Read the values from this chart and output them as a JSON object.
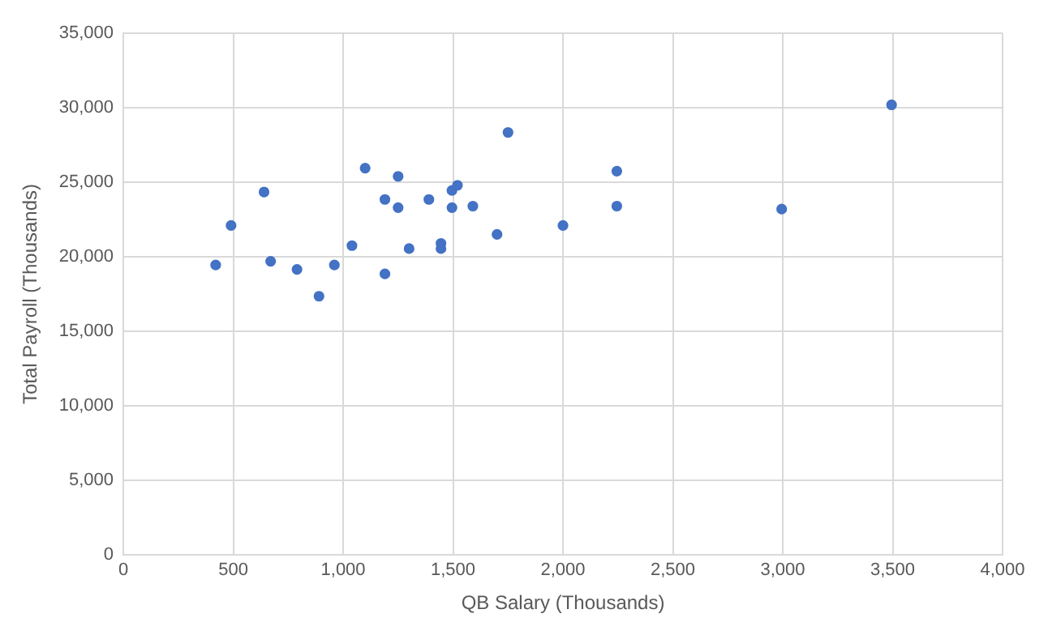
{
  "chart_data": {
    "type": "scatter",
    "xlabel": "QB Salary (Thousands)",
    "ylabel": "Total Payroll (Thousands)",
    "x": [
      420,
      490,
      640,
      670,
      790,
      890,
      960,
      1040,
      1100,
      1190,
      1190,
      1250,
      1250,
      1300,
      1390,
      1445,
      1445,
      1495,
      1495,
      1520,
      1590,
      1700,
      1750,
      2000,
      2245,
      2245,
      2995,
      3495
    ],
    "values": [
      19450,
      22100,
      24350,
      19700,
      19150,
      17350,
      19450,
      20750,
      25950,
      23850,
      18850,
      25400,
      23300,
      20550,
      23850,
      20900,
      20550,
      24450,
      23300,
      24800,
      23400,
      21500,
      28350,
      22100,
      25750,
      23400,
      23200,
      30200
    ],
    "color": "#4472c4",
    "marker": "circle",
    "xlim": [
      0,
      4000
    ],
    "xticks": [
      0,
      {
        "value": 500,
        "label": "500"
      },
      {
        "value": 1000,
        "label": "1,000"
      },
      {
        "value": 1500,
        "label": "1,500"
      },
      {
        "value": 2000,
        "label": "2,000"
      },
      {
        "value": 2500,
        "label": "2,500"
      },
      {
        "value": 3000,
        "label": "3,000"
      },
      {
        "value": 3500,
        "label": "3,500"
      },
      {
        "value": 4000,
        "label": "4,000"
      }
    ],
    "ylim": [
      0,
      35000
    ],
    "yticks": [
      0,
      {
        "value": 5000,
        "label": "5,000"
      },
      {
        "value": 10000,
        "label": "10,000"
      },
      {
        "value": 15000,
        "label": "15,000"
      },
      {
        "value": 20000,
        "label": "20,000"
      },
      {
        "value": 25000,
        "label": "25,000"
      },
      {
        "value": 30000,
        "label": "30,000"
      },
      {
        "value": 35000,
        "label": "35,000"
      }
    ],
    "grid": true,
    "legend": false
  }
}
